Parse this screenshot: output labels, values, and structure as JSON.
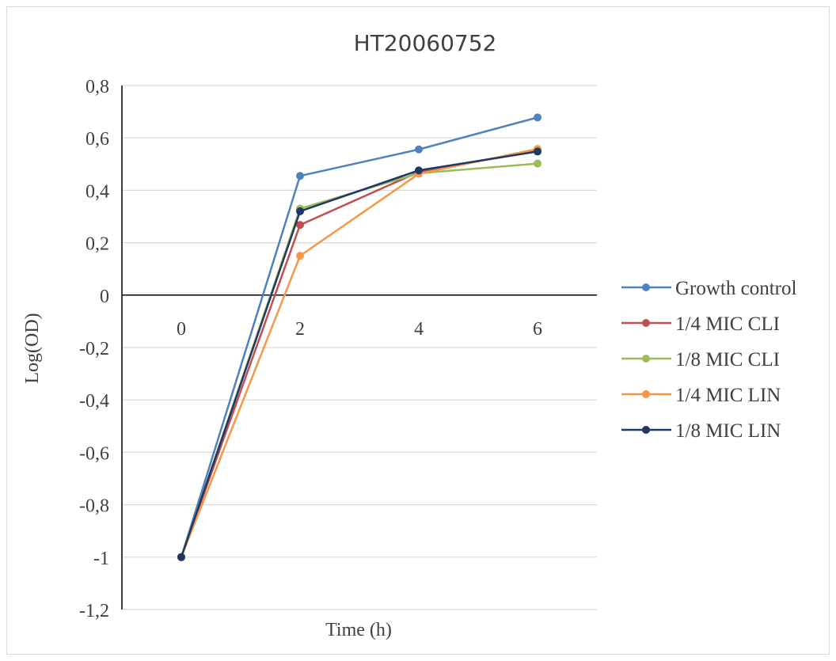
{
  "chart_data": {
    "type": "line",
    "title": "HT20060752",
    "xlabel": "Time (h)",
    "ylabel": "Log(OD)",
    "x": [
      0,
      2,
      4,
      6
    ],
    "x_tick_labels": [
      "0",
      "2",
      "4",
      "6"
    ],
    "ylim": [
      -1.2,
      0.8
    ],
    "y_ticks": [
      0.8,
      0.6,
      0.4,
      0.2,
      0,
      -0.2,
      -0.4,
      -0.6,
      -0.8,
      -1,
      -1.2
    ],
    "y_tick_labels": [
      "0,8",
      "0,6",
      "0,4",
      "0,2",
      "0",
      "-0,2",
      "-0,4",
      "-0,6",
      "-0,8",
      "-1",
      "-1,2"
    ],
    "grid": true,
    "legend_position": "right",
    "series": [
      {
        "name": "Growth control",
        "color": "#4f81bd",
        "values": [
          -1,
          0.455,
          0.556,
          0.678
        ]
      },
      {
        "name": "1/4 MIC CLI",
        "color": "#c0504d",
        "values": [
          -1,
          0.268,
          0.47,
          0.553
        ]
      },
      {
        "name": "1/8 MIC CLI",
        "color": "#9bbb59",
        "values": [
          -1,
          0.33,
          0.465,
          0.502
        ]
      },
      {
        "name": "1/4 MIC LIN",
        "color": "#f79646",
        "values": [
          -1,
          0.15,
          0.463,
          0.558
        ]
      },
      {
        "name": "1/8 MIC LIN",
        "color": "#1f3864",
        "values": [
          -1,
          0.32,
          0.476,
          0.548
        ]
      }
    ]
  }
}
